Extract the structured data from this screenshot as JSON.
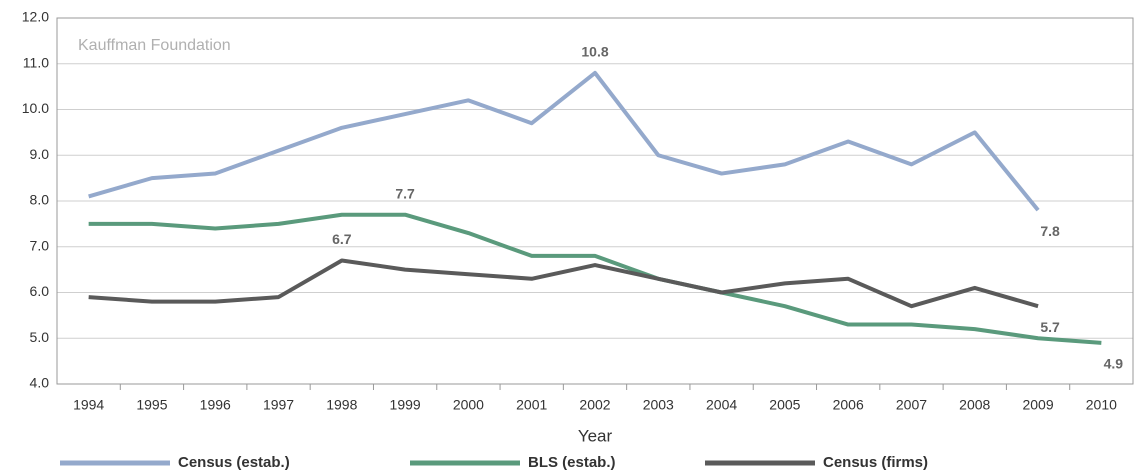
{
  "chart_data": {
    "type": "line",
    "annotation": "Kauffman Foundation",
    "x_label": "Year",
    "categories": [
      "1994",
      "1995",
      "1996",
      "1997",
      "1998",
      "1999",
      "2000",
      "2001",
      "2002",
      "2003",
      "2004",
      "2005",
      "2006",
      "2007",
      "2008",
      "2009",
      "2010"
    ],
    "series": [
      {
        "name": "Census (estab.)",
        "color": "#94a9cc",
        "values": [
          8.1,
          8.5,
          8.6,
          9.1,
          9.6,
          9.9,
          10.2,
          9.7,
          10.8,
          9.0,
          8.6,
          8.8,
          9.3,
          8.8,
          9.5,
          7.8,
          null
        ],
        "value_labels": [
          null,
          null,
          null,
          null,
          null,
          null,
          null,
          null,
          "10.8",
          null,
          null,
          null,
          null,
          null,
          null,
          "7.8",
          null
        ]
      },
      {
        "name": "BLS (estab.)",
        "color": "#5a9a7c",
        "values": [
          7.5,
          7.5,
          7.4,
          7.5,
          7.7,
          7.7,
          7.3,
          6.8,
          6.8,
          6.3,
          6.0,
          5.7,
          5.3,
          5.3,
          5.2,
          5.0,
          4.9
        ],
        "value_labels": [
          null,
          null,
          null,
          null,
          null,
          "7.7",
          null,
          null,
          null,
          null,
          null,
          null,
          null,
          null,
          null,
          null,
          "4.9"
        ]
      },
      {
        "name": "Census (firms)",
        "color": "#5a5a5a",
        "values": [
          5.9,
          5.8,
          5.8,
          5.9,
          6.7,
          6.5,
          6.4,
          6.3,
          6.6,
          6.3,
          6.0,
          6.2,
          6.3,
          5.7,
          6.1,
          5.7,
          null
        ],
        "value_labels": [
          null,
          null,
          null,
          null,
          "6.7",
          null,
          null,
          null,
          null,
          null,
          null,
          null,
          null,
          null,
          null,
          "5.7",
          null
        ]
      }
    ],
    "ylim": [
      4,
      12
    ],
    "yticks": [
      {
        "value": 4,
        "label": "4.0"
      },
      {
        "value": 5,
        "label": "5.0"
      },
      {
        "value": 6,
        "label": "6.0"
      },
      {
        "value": 7,
        "label": "7.0"
      },
      {
        "value": 8,
        "label": "8.0"
      },
      {
        "value": 9,
        "label": "9.0"
      },
      {
        "value": 10,
        "label": "10.0"
      },
      {
        "value": 11,
        "label": "11.0"
      },
      {
        "value": 12,
        "label": "12.0"
      }
    ],
    "grid": true
  }
}
